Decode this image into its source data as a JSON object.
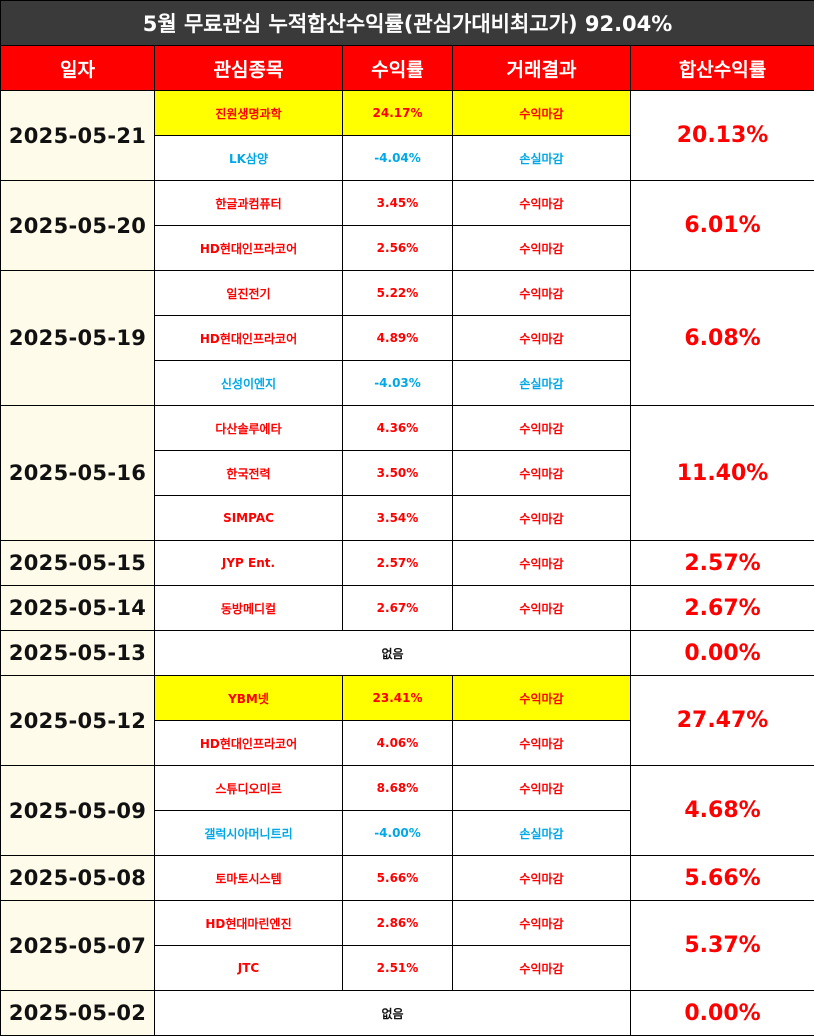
{
  "title": "5월 무료관심 누적합산수익률(관심가대비최고가) 92.04%",
  "headers": {
    "date": "일자",
    "stock": "관심종목",
    "return": "수익률",
    "result": "거래결과",
    "total": "합산수익률"
  },
  "colors": {
    "profit": "#ff0000",
    "loss": "#00a8e8",
    "highlight": "#ffff00",
    "header": "#ff0000",
    "title_bar": "#3a3a3a"
  },
  "groups": [
    {
      "date": "2025-05-21",
      "total": "20.13%",
      "items": [
        {
          "name": "진원생명과학",
          "return": "24.17%",
          "result": "수익마감",
          "kind": "profit",
          "highlight": true
        },
        {
          "name": "LK삼양",
          "return": "-4.04%",
          "result": "손실마감",
          "kind": "loss",
          "highlight": false
        }
      ]
    },
    {
      "date": "2025-05-20",
      "total": "6.01%",
      "items": [
        {
          "name": "한글과컴퓨터",
          "return": "3.45%",
          "result": "수익마감",
          "kind": "profit",
          "highlight": false
        },
        {
          "name": "HD현대인프라코어",
          "return": "2.56%",
          "result": "수익마감",
          "kind": "profit",
          "highlight": false
        }
      ]
    },
    {
      "date": "2025-05-19",
      "total": "6.08%",
      "items": [
        {
          "name": "일진전기",
          "return": "5.22%",
          "result": "수익마감",
          "kind": "profit",
          "highlight": false
        },
        {
          "name": "HD현대인프라코어",
          "return": "4.89%",
          "result": "수익마감",
          "kind": "profit",
          "highlight": false
        },
        {
          "name": "신성이엔지",
          "return": "-4.03%",
          "result": "손실마감",
          "kind": "loss",
          "highlight": false
        }
      ]
    },
    {
      "date": "2025-05-16",
      "total": "11.40%",
      "items": [
        {
          "name": "다산솔루에타",
          "return": "4.36%",
          "result": "수익마감",
          "kind": "profit",
          "highlight": false
        },
        {
          "name": "한국전력",
          "return": "3.50%",
          "result": "수익마감",
          "kind": "profit",
          "highlight": false
        },
        {
          "name": "SIMPAC",
          "return": "3.54%",
          "result": "수익마감",
          "kind": "profit",
          "highlight": false
        }
      ]
    },
    {
      "date": "2025-05-15",
      "total": "2.57%",
      "items": [
        {
          "name": "JYP Ent.",
          "return": "2.57%",
          "result": "수익마감",
          "kind": "profit",
          "highlight": false
        }
      ]
    },
    {
      "date": "2025-05-14",
      "total": "2.67%",
      "items": [
        {
          "name": "동방메디컬",
          "return": "2.67%",
          "result": "수익마감",
          "kind": "profit",
          "highlight": false
        }
      ]
    },
    {
      "date": "2025-05-13",
      "total": "0.00%",
      "none": "없음",
      "items": []
    },
    {
      "date": "2025-05-12",
      "total": "27.47%",
      "items": [
        {
          "name": "YBM넷",
          "return": "23.41%",
          "result": "수익마감",
          "kind": "profit",
          "highlight": true
        },
        {
          "name": "HD현대인프라코어",
          "return": "4.06%",
          "result": "수익마감",
          "kind": "profit",
          "highlight": false
        }
      ]
    },
    {
      "date": "2025-05-09",
      "total": "4.68%",
      "items": [
        {
          "name": "스튜디오미르",
          "return": "8.68%",
          "result": "수익마감",
          "kind": "profit",
          "highlight": false
        },
        {
          "name": "갤럭시아머니트리",
          "return": "-4.00%",
          "result": "손실마감",
          "kind": "loss",
          "highlight": false
        }
      ]
    },
    {
      "date": "2025-05-08",
      "total": "5.66%",
      "items": [
        {
          "name": "토마토시스템",
          "return": "5.66%",
          "result": "수익마감",
          "kind": "profit",
          "highlight": false
        }
      ]
    },
    {
      "date": "2025-05-07",
      "total": "5.37%",
      "items": [
        {
          "name": "HD현대마린엔진",
          "return": "2.86%",
          "result": "수익마감",
          "kind": "profit",
          "highlight": false
        },
        {
          "name": "JTC",
          "return": "2.51%",
          "result": "수익마감",
          "kind": "profit",
          "highlight": false
        }
      ]
    },
    {
      "date": "2025-05-02",
      "total": "0.00%",
      "none": "없음",
      "items": []
    }
  ]
}
